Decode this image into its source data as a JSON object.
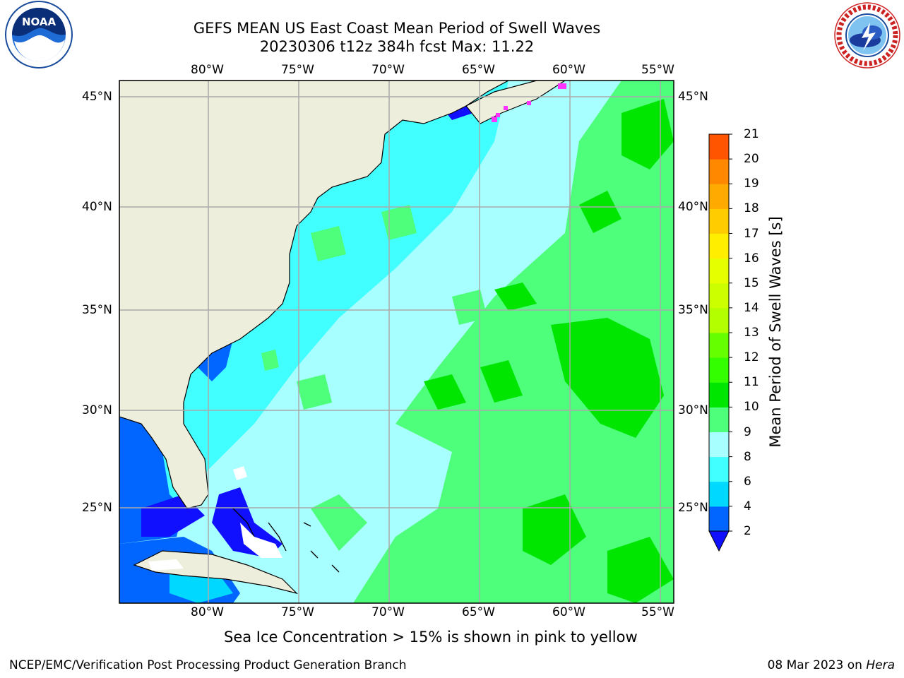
{
  "header": {
    "title_line1": "GEFS MEAN US East Coast Mean Period of Swell Waves",
    "title_line2": "20230306 t12z 384h fcst   Max: 11.22"
  },
  "logos": {
    "noaa": "NOAA",
    "nws": "NATIONAL WEATHER SERVICE"
  },
  "axes": {
    "lon_labels": [
      "80°W",
      "75°W",
      "70°W",
      "65°W",
      "60°W",
      "55°W"
    ],
    "lat_labels": [
      "45°N",
      "40°N",
      "35°N",
      "30°N",
      "25°N"
    ]
  },
  "colorbar": {
    "title": "Mean Period of Swell Waves [s]",
    "ticks": [
      "2",
      "4",
      "6",
      "8",
      "9",
      "10",
      "11",
      "12",
      "13",
      "14",
      "15",
      "16",
      "17",
      "18",
      "19",
      "20",
      "21"
    ],
    "colors": [
      "#0066ff",
      "#00d8ff",
      "#42ffff",
      "#a8ffff",
      "#4dff7a",
      "#00e600",
      "#33ff00",
      "#66ff00",
      "#b3ff00",
      "#ccff00",
      "#e6ff00",
      "#ffee00",
      "#ffcc00",
      "#ffaa00",
      "#ff8800",
      "#ff5500",
      "#ff3300",
      "#ff0000"
    ],
    "under_color": "#1010ff"
  },
  "notes": {
    "ice": "Sea Ice Concentration > 15% is shown in pink to yellow",
    "footer_left": "NCEP/EMC/Verification Post Processing Product Generation Branch",
    "footer_date": "08 Mar 2023 on ",
    "footer_host": "Hera"
  },
  "colors": {
    "land": "#eeeedd",
    "grid": "#aaaaaa",
    "ice": "#ff33ff"
  }
}
